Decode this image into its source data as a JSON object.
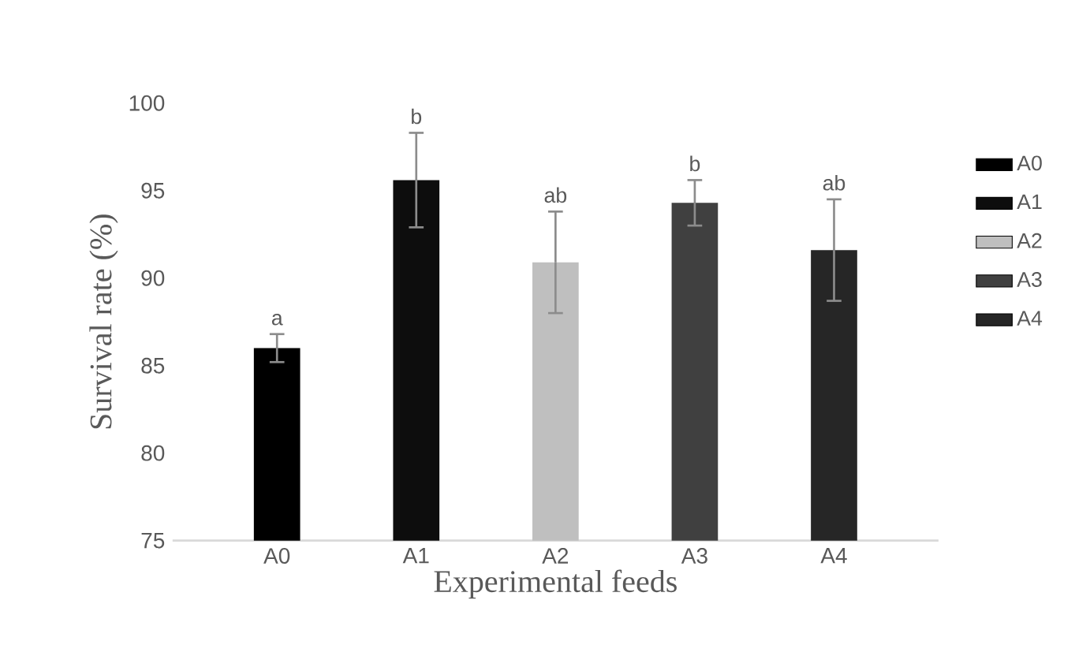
{
  "chart_data": {
    "type": "bar",
    "xlabel": "Experimental feeds",
    "ylabel": "Survival rate (%)",
    "categories": [
      "A0",
      "A1",
      "A2",
      "A3",
      "A4"
    ],
    "series": [
      {
        "name": "A0",
        "color": "#000000",
        "values": [
          86.0,
          null,
          null,
          null,
          null
        ],
        "errors": [
          0.8,
          null,
          null,
          null,
          null
        ]
      },
      {
        "name": "A1",
        "color": "#0d0d0d",
        "values": [
          null,
          95.6,
          null,
          null,
          null
        ],
        "errors": [
          null,
          2.7,
          null,
          null,
          null
        ]
      },
      {
        "name": "A2",
        "color": "#bfbfbf",
        "values": [
          null,
          null,
          90.9,
          null,
          null
        ],
        "errors": [
          null,
          null,
          2.9,
          null,
          null
        ]
      },
      {
        "name": "A3",
        "color": "#404040",
        "values": [
          null,
          null,
          null,
          94.3,
          null
        ],
        "errors": [
          null,
          null,
          null,
          1.3,
          null
        ]
      },
      {
        "name": "A4",
        "color": "#262626",
        "values": [
          null,
          null,
          null,
          null,
          91.6
        ],
        "errors": [
          null,
          null,
          null,
          null,
          2.9
        ]
      }
    ],
    "ylim": [
      75,
      100
    ],
    "yticks": [
      75,
      80,
      85,
      90,
      95,
      100
    ],
    "grid": false,
    "legend": "right",
    "annotations": [
      "a",
      "b",
      "ab",
      "b",
      "ab"
    ]
  }
}
